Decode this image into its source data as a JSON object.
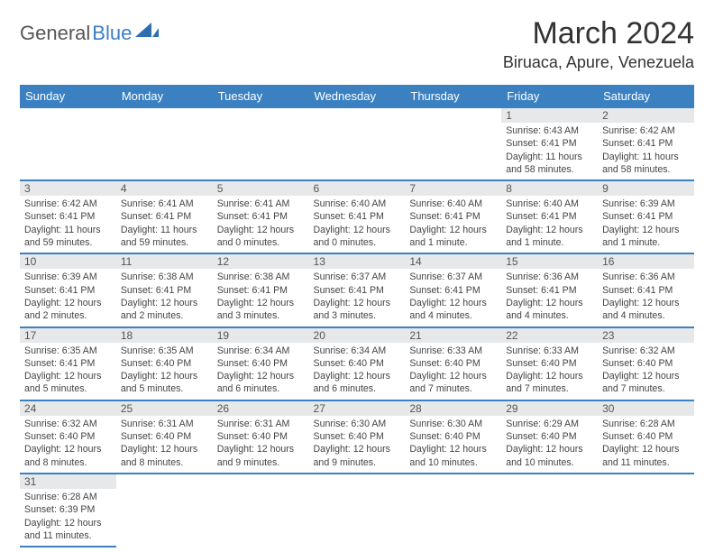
{
  "logo": {
    "part1": "General",
    "part2": "Blue"
  },
  "title": "March 2024",
  "location": "Biruaca, Apure, Venezuela",
  "colors": {
    "header_bg": "#3b81c2",
    "header_fg": "#ffffff",
    "daynum_bg": "#e7e8ea",
    "rule": "#3b81c2"
  },
  "dayHeaders": [
    "Sunday",
    "Monday",
    "Tuesday",
    "Wednesday",
    "Thursday",
    "Friday",
    "Saturday"
  ],
  "weeks": [
    [
      null,
      null,
      null,
      null,
      null,
      {
        "n": "1",
        "sr": "Sunrise: 6:43 AM",
        "ss": "Sunset: 6:41 PM",
        "dl": "Daylight: 11 hours and 58 minutes."
      },
      {
        "n": "2",
        "sr": "Sunrise: 6:42 AM",
        "ss": "Sunset: 6:41 PM",
        "dl": "Daylight: 11 hours and 58 minutes."
      }
    ],
    [
      {
        "n": "3",
        "sr": "Sunrise: 6:42 AM",
        "ss": "Sunset: 6:41 PM",
        "dl": "Daylight: 11 hours and 59 minutes."
      },
      {
        "n": "4",
        "sr": "Sunrise: 6:41 AM",
        "ss": "Sunset: 6:41 PM",
        "dl": "Daylight: 11 hours and 59 minutes."
      },
      {
        "n": "5",
        "sr": "Sunrise: 6:41 AM",
        "ss": "Sunset: 6:41 PM",
        "dl": "Daylight: 12 hours and 0 minutes."
      },
      {
        "n": "6",
        "sr": "Sunrise: 6:40 AM",
        "ss": "Sunset: 6:41 PM",
        "dl": "Daylight: 12 hours and 0 minutes."
      },
      {
        "n": "7",
        "sr": "Sunrise: 6:40 AM",
        "ss": "Sunset: 6:41 PM",
        "dl": "Daylight: 12 hours and 1 minute."
      },
      {
        "n": "8",
        "sr": "Sunrise: 6:40 AM",
        "ss": "Sunset: 6:41 PM",
        "dl": "Daylight: 12 hours and 1 minute."
      },
      {
        "n": "9",
        "sr": "Sunrise: 6:39 AM",
        "ss": "Sunset: 6:41 PM",
        "dl": "Daylight: 12 hours and 1 minute."
      }
    ],
    [
      {
        "n": "10",
        "sr": "Sunrise: 6:39 AM",
        "ss": "Sunset: 6:41 PM",
        "dl": "Daylight: 12 hours and 2 minutes."
      },
      {
        "n": "11",
        "sr": "Sunrise: 6:38 AM",
        "ss": "Sunset: 6:41 PM",
        "dl": "Daylight: 12 hours and 2 minutes."
      },
      {
        "n": "12",
        "sr": "Sunrise: 6:38 AM",
        "ss": "Sunset: 6:41 PM",
        "dl": "Daylight: 12 hours and 3 minutes."
      },
      {
        "n": "13",
        "sr": "Sunrise: 6:37 AM",
        "ss": "Sunset: 6:41 PM",
        "dl": "Daylight: 12 hours and 3 minutes."
      },
      {
        "n": "14",
        "sr": "Sunrise: 6:37 AM",
        "ss": "Sunset: 6:41 PM",
        "dl": "Daylight: 12 hours and 4 minutes."
      },
      {
        "n": "15",
        "sr": "Sunrise: 6:36 AM",
        "ss": "Sunset: 6:41 PM",
        "dl": "Daylight: 12 hours and 4 minutes."
      },
      {
        "n": "16",
        "sr": "Sunrise: 6:36 AM",
        "ss": "Sunset: 6:41 PM",
        "dl": "Daylight: 12 hours and 4 minutes."
      }
    ],
    [
      {
        "n": "17",
        "sr": "Sunrise: 6:35 AM",
        "ss": "Sunset: 6:41 PM",
        "dl": "Daylight: 12 hours and 5 minutes."
      },
      {
        "n": "18",
        "sr": "Sunrise: 6:35 AM",
        "ss": "Sunset: 6:40 PM",
        "dl": "Daylight: 12 hours and 5 minutes."
      },
      {
        "n": "19",
        "sr": "Sunrise: 6:34 AM",
        "ss": "Sunset: 6:40 PM",
        "dl": "Daylight: 12 hours and 6 minutes."
      },
      {
        "n": "20",
        "sr": "Sunrise: 6:34 AM",
        "ss": "Sunset: 6:40 PM",
        "dl": "Daylight: 12 hours and 6 minutes."
      },
      {
        "n": "21",
        "sr": "Sunrise: 6:33 AM",
        "ss": "Sunset: 6:40 PM",
        "dl": "Daylight: 12 hours and 7 minutes."
      },
      {
        "n": "22",
        "sr": "Sunrise: 6:33 AM",
        "ss": "Sunset: 6:40 PM",
        "dl": "Daylight: 12 hours and 7 minutes."
      },
      {
        "n": "23",
        "sr": "Sunrise: 6:32 AM",
        "ss": "Sunset: 6:40 PM",
        "dl": "Daylight: 12 hours and 7 minutes."
      }
    ],
    [
      {
        "n": "24",
        "sr": "Sunrise: 6:32 AM",
        "ss": "Sunset: 6:40 PM",
        "dl": "Daylight: 12 hours and 8 minutes."
      },
      {
        "n": "25",
        "sr": "Sunrise: 6:31 AM",
        "ss": "Sunset: 6:40 PM",
        "dl": "Daylight: 12 hours and 8 minutes."
      },
      {
        "n": "26",
        "sr": "Sunrise: 6:31 AM",
        "ss": "Sunset: 6:40 PM",
        "dl": "Daylight: 12 hours and 9 minutes."
      },
      {
        "n": "27",
        "sr": "Sunrise: 6:30 AM",
        "ss": "Sunset: 6:40 PM",
        "dl": "Daylight: 12 hours and 9 minutes."
      },
      {
        "n": "28",
        "sr": "Sunrise: 6:30 AM",
        "ss": "Sunset: 6:40 PM",
        "dl": "Daylight: 12 hours and 10 minutes."
      },
      {
        "n": "29",
        "sr": "Sunrise: 6:29 AM",
        "ss": "Sunset: 6:40 PM",
        "dl": "Daylight: 12 hours and 10 minutes."
      },
      {
        "n": "30",
        "sr": "Sunrise: 6:28 AM",
        "ss": "Sunset: 6:40 PM",
        "dl": "Daylight: 12 hours and 11 minutes."
      }
    ],
    [
      {
        "n": "31",
        "sr": "Sunrise: 6:28 AM",
        "ss": "Sunset: 6:39 PM",
        "dl": "Daylight: 12 hours and 11 minutes."
      },
      null,
      null,
      null,
      null,
      null,
      null
    ]
  ]
}
